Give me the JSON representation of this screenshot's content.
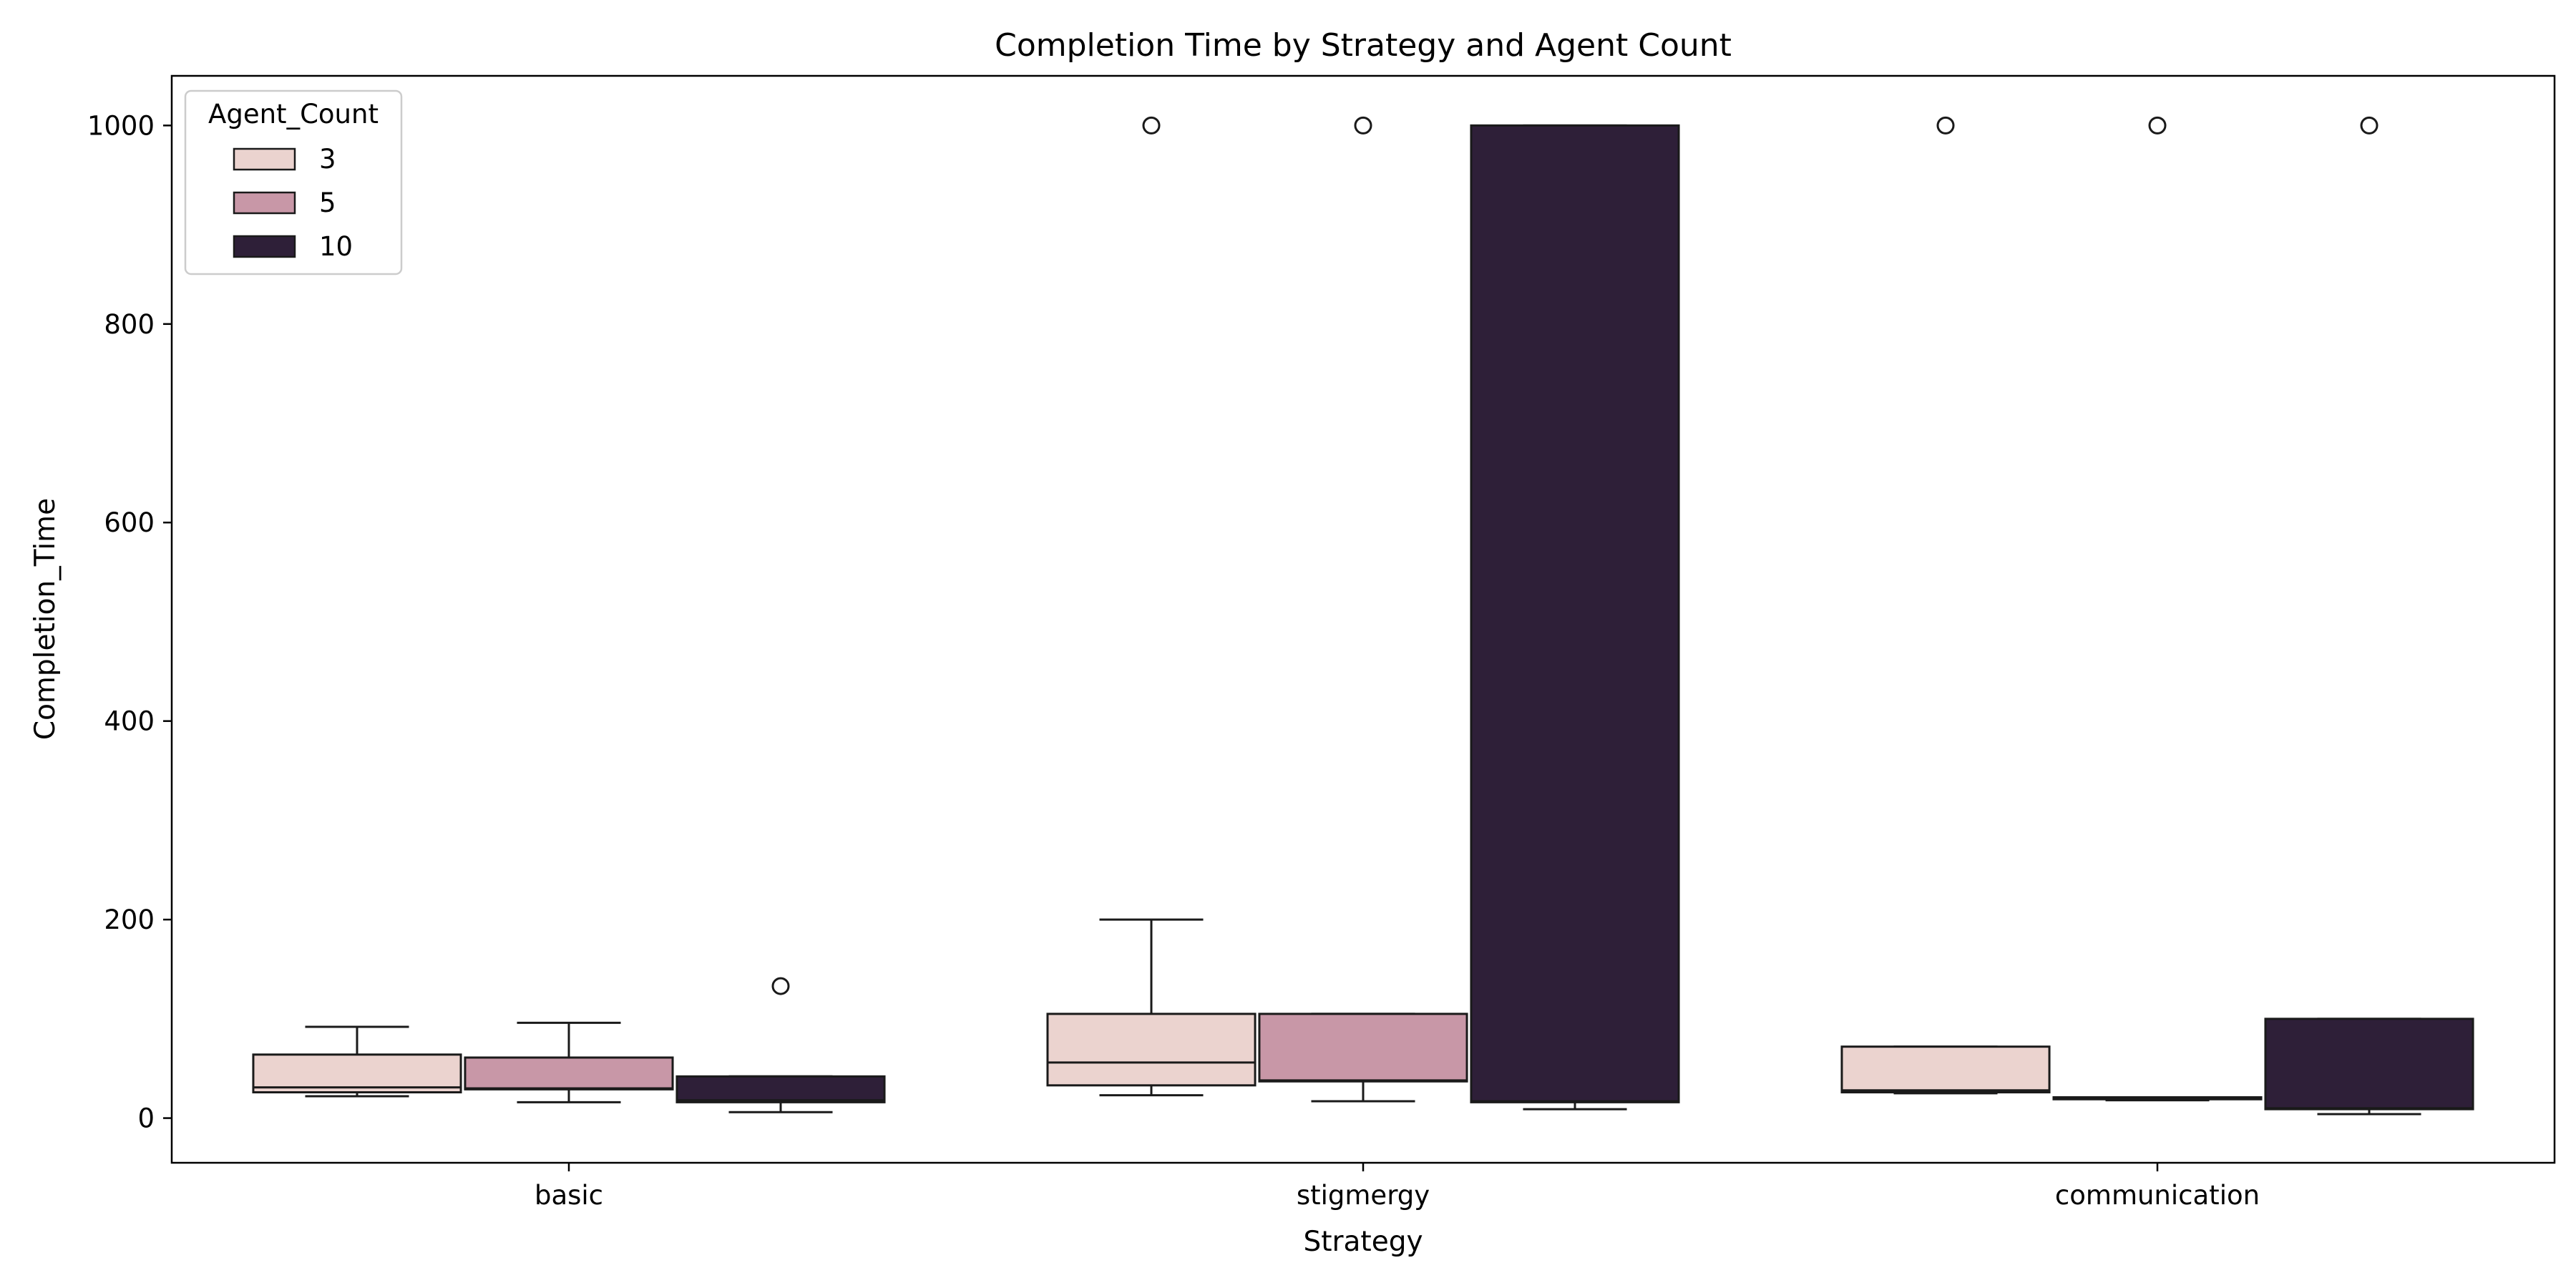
{
  "chart_data": {
    "type": "box",
    "title": "Completion Time by Strategy and Agent Count",
    "xlabel": "Strategy",
    "ylabel": "Completion_Time",
    "categories": [
      "basic",
      "stigmergy",
      "communication"
    ],
    "ylim": [
      -45,
      1050
    ],
    "yticks": [
      0,
      200,
      400,
      600,
      800,
      1000
    ],
    "grid": false,
    "legend": {
      "title": "Agent_Count",
      "position": "top-left",
      "entries": [
        "3",
        "5",
        "10"
      ]
    },
    "series": [
      {
        "name": "3",
        "color": "#ebd3cf",
        "boxes": [
          {
            "category": "basic",
            "whisker_low": 22,
            "q1": 26,
            "median": 31,
            "q3": 64,
            "whisker_high": 92,
            "outliers": []
          },
          {
            "category": "stigmergy",
            "whisker_low": 23,
            "q1": 33,
            "median": 56,
            "q3": 105,
            "whisker_high": 200,
            "outliers": [
              1000
            ]
          },
          {
            "category": "communication",
            "whisker_low": 25,
            "q1": 26,
            "median": 28,
            "q3": 72,
            "whisker_high": 72,
            "outliers": [
              1000
            ]
          }
        ]
      },
      {
        "name": "5",
        "color": "#c897a7",
        "boxes": [
          {
            "category": "basic",
            "whisker_low": 16,
            "q1": 29,
            "median": 30,
            "q3": 61,
            "whisker_high": 96,
            "outliers": []
          },
          {
            "category": "stigmergy",
            "whisker_low": 17,
            "q1": 37,
            "median": 38,
            "q3": 105,
            "whisker_high": 105,
            "outliers": [
              1000
            ]
          },
          {
            "category": "communication",
            "whisker_low": 18,
            "q1": 19,
            "median": 20,
            "q3": 21,
            "whisker_high": 21,
            "outliers": [
              1000
            ]
          }
        ]
      },
      {
        "name": "10",
        "color": "#2e1f38",
        "boxes": [
          {
            "category": "basic",
            "whisker_low": 6,
            "q1": 16,
            "median": 18,
            "q3": 42,
            "whisker_high": 42,
            "outliers": [
              133
            ]
          },
          {
            "category": "stigmergy",
            "whisker_low": 9,
            "q1": 16,
            "median": 17,
            "q3": 1000,
            "whisker_high": 1000,
            "outliers": []
          },
          {
            "category": "communication",
            "whisker_low": 4,
            "q1": 9,
            "median": 10,
            "q3": 100,
            "whisker_high": 100,
            "outliers": [
              1000
            ]
          }
        ]
      }
    ]
  }
}
